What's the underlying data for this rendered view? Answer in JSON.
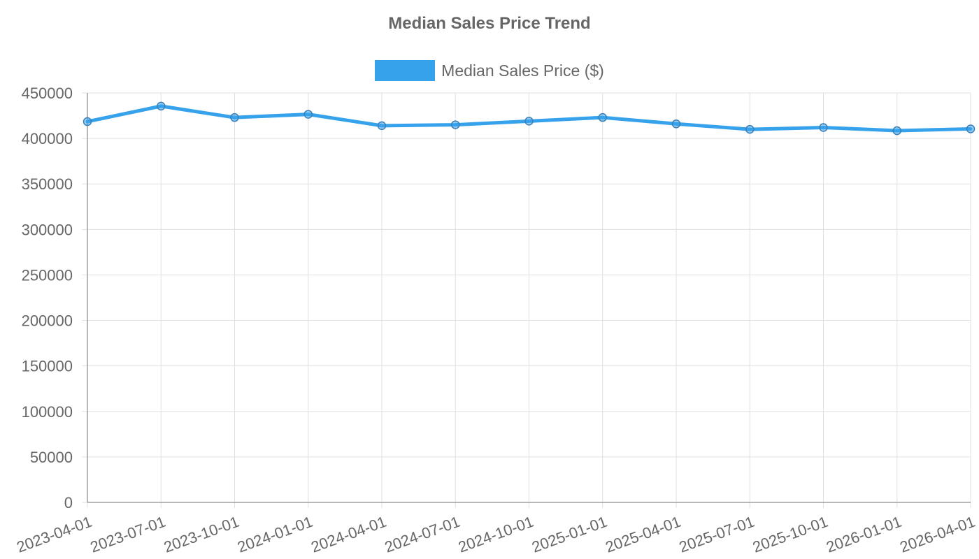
{
  "chart_data": {
    "type": "line",
    "title": "Median Sales Price Trend",
    "xlabel": "",
    "ylabel": "",
    "x": [
      "2023-04-01",
      "2023-07-01",
      "2023-10-01",
      "2024-01-01",
      "2024-04-01",
      "2024-07-01",
      "2024-10-01",
      "2025-01-01",
      "2025-04-01",
      "2025-07-01",
      "2025-10-01",
      "2026-01-01",
      "2026-04-01"
    ],
    "series": [
      {
        "name": "Median Sales Price ($)",
        "color": "#36A2EB",
        "values": [
          418500,
          435500,
          423000,
          426500,
          414000,
          415000,
          419000,
          423000,
          416000,
          410000,
          412000,
          408500,
          410500
        ]
      }
    ],
    "ylim": [
      0,
      450000
    ],
    "yticks": [
      0,
      50000,
      100000,
      150000,
      200000,
      250000,
      300000,
      350000,
      400000,
      450000
    ],
    "grid": true,
    "legend": "top-center"
  }
}
